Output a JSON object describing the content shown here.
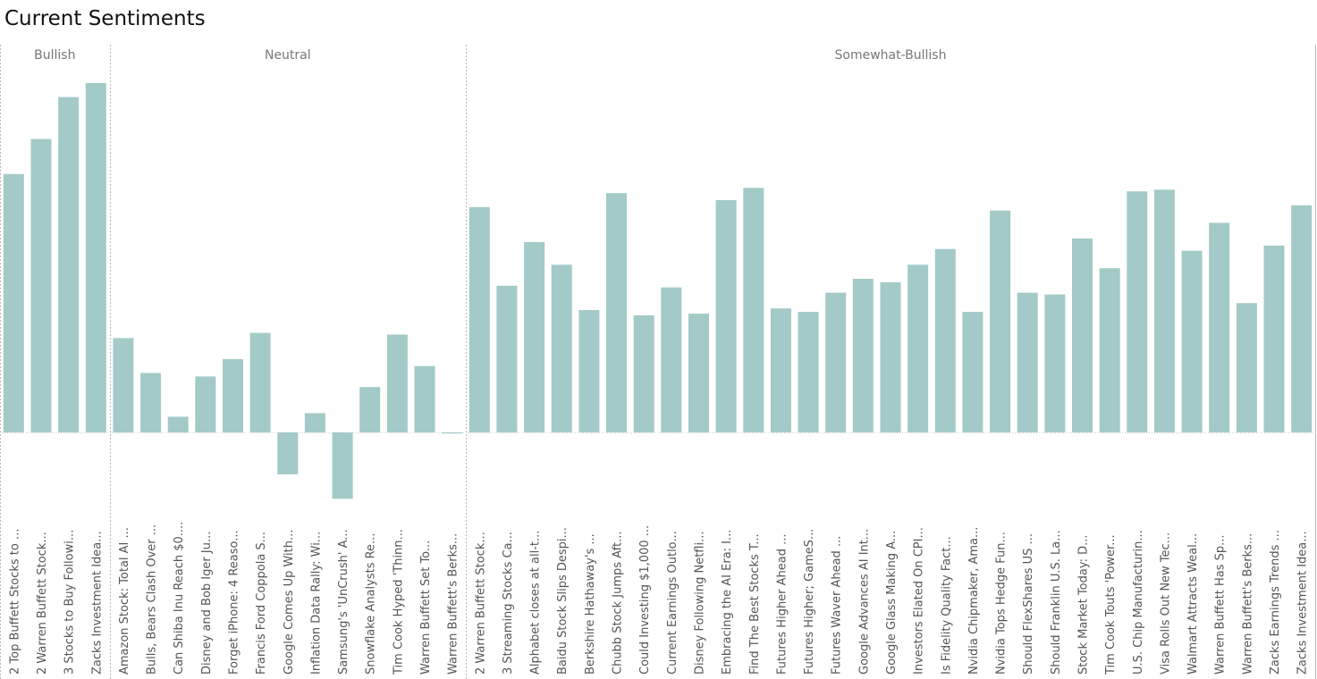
{
  "title": "Current Sentiments",
  "chart_data": {
    "type": "bar",
    "title": "Current Sentiments",
    "xlabel": "",
    "ylabel": "",
    "ylim": [
      -0.19,
      1.0
    ],
    "grid": false,
    "legend": "none",
    "colors": {
      "bar": "#a3cac7",
      "divider": "#bbbbbb",
      "axis_text": "#555555",
      "header_text": "#777777"
    },
    "panels": [
      {
        "name": "Bullish",
        "categories": [
          "2 Top Buffett Stocks to ...",
          "2 Warren Buffett Stock...",
          "3 Stocks to Buy Followi...",
          "Zacks Investment Idea..."
        ],
        "values": [
          0.74,
          0.84,
          0.96,
          1.0
        ]
      },
      {
        "name": "Neutral",
        "categories": [
          "Amazon Stock: Total AI ...",
          "Bulls, Bears Clash Over ...",
          "Can Shiba Inu Reach $0....",
          "Disney and Bob Iger Ju...",
          "Forget iPhone: 4 Reaso...",
          "Francis Ford Coppola S...",
          "Google Comes Up With...",
          "Inflation Data Rally: Wi...",
          "Samsung's 'UnCrush' A...",
          "Snowflake Analysts Re...",
          "Tim Cook Hyped 'Thinn...",
          "Warren Buffett Set To...",
          "Warren Buffett's Berks..."
        ],
        "values": [
          0.27,
          0.17,
          0.045,
          0.16,
          0.21,
          0.285,
          -0.12,
          0.055,
          -0.19,
          0.13,
          0.28,
          0.19,
          -0.003
        ]
      },
      {
        "name": "Somewhat-Bullish",
        "categories": [
          "2 Warren Buffett Stock...",
          "3 Streaming Stocks Ca...",
          "Alphabet closes at all-t...",
          "Baidu Stock Slips Despi...",
          "Berkshire Hathaway's ...",
          "Chubb Stock Jumps Aft...",
          "Could Investing $1,000 ...",
          "Current Earnings Outlo...",
          "Disney Following Netfli...",
          "Embracing the AI Era: I...",
          "Find The Best Stocks T...",
          "Futures Higher Ahead ...",
          "Futures Higher; GameS...",
          "Futures Waver Ahead ...",
          "Google Advances AI Int...",
          "Google Glass Making A...",
          "Investors Elated On CPI...",
          "Is Fidelity Quality Fact...",
          "Nvidia Chipmaker, Ama...",
          "Nvidia Tops Hedge Fun...",
          "Should FlexShares US ...",
          "Should Franklin U.S. La...",
          "Stock Market Today: D...",
          "Tim Cook Touts 'Power...",
          "U.S. Chip Manufacturin...",
          "Visa Rolls Out New Tec...",
          "Walmart Attracts Weal...",
          "Warren Buffett Has Sp...",
          "Warren Buffett's Berks...",
          "Zacks Earnings Trends ...",
          "Zacks Investment Idea..."
        ],
        "values": [
          0.645,
          0.42,
          0.545,
          0.48,
          0.35,
          0.685,
          0.335,
          0.415,
          0.34,
          0.665,
          0.7,
          0.355,
          0.345,
          0.4,
          0.44,
          0.43,
          0.48,
          0.525,
          0.345,
          0.635,
          0.4,
          0.395,
          0.555,
          0.47,
          0.69,
          0.695,
          0.52,
          0.6,
          0.37,
          0.535,
          0.65
        ]
      }
    ]
  }
}
